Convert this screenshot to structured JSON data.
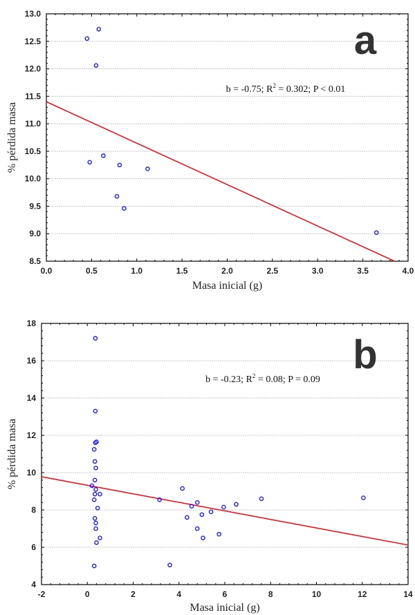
{
  "chart_data": [
    {
      "type": "scatter",
      "panel_label": "a",
      "xlabel": "Masa inicial (g)",
      "ylabel": "% pérdida masa",
      "xlim": [
        0.0,
        4.0
      ],
      "ylim": [
        8.5,
        13.0
      ],
      "xticks": [
        "0.0",
        "0.5",
        "1.0",
        "1.5",
        "2.0",
        "2.5",
        "3.0",
        "3.5",
        "4.0"
      ],
      "yticks": [
        "8.5",
        "9.0",
        "9.5",
        "10.0",
        "10.5",
        "11.0",
        "11.5",
        "12.0",
        "12.5",
        "13.0"
      ],
      "grid": true,
      "annotation": {
        "b": "b = -0.75;",
        "r2_prefix": "R",
        "r2_sup": "2",
        "r2_value": " = 0.302; P < 0.01"
      },
      "points": [
        [
          0.45,
          12.55
        ],
        [
          0.58,
          12.72
        ],
        [
          0.55,
          12.06
        ],
        [
          0.48,
          10.3
        ],
        [
          0.63,
          10.42
        ],
        [
          0.81,
          10.25
        ],
        [
          1.12,
          10.18
        ],
        [
          0.78,
          9.68
        ],
        [
          0.86,
          9.46
        ],
        [
          3.65,
          9.02
        ]
      ],
      "fit_line": {
        "x": [
          0.0,
          3.85
        ],
        "y": [
          11.4,
          8.5
        ]
      },
      "colors": {
        "points": "#1a1aff",
        "line": "#e8161b"
      }
    },
    {
      "type": "scatter",
      "panel_label": "b",
      "xlabel": "Masa inicial (g)",
      "ylabel": "% pérdida masa",
      "xlim": [
        -2,
        14
      ],
      "ylim": [
        4,
        18
      ],
      "xticks": [
        "-2",
        "0",
        "2",
        "4",
        "6",
        "8",
        "10",
        "12",
        "14"
      ],
      "yticks": [
        "4",
        "6",
        "8",
        "10",
        "12",
        "14",
        "16",
        "18"
      ],
      "grid": true,
      "annotation": {
        "b": "b = -0.23;",
        "r2_prefix": "R",
        "r2_sup": "2",
        "r2_value": " = 0.08;  P = 0.09"
      },
      "points": [
        [
          0.35,
          17.2
        ],
        [
          0.35,
          13.3
        ],
        [
          0.4,
          11.65
        ],
        [
          0.35,
          11.6
        ],
        [
          0.3,
          11.25
        ],
        [
          0.33,
          10.6
        ],
        [
          0.37,
          10.25
        ],
        [
          0.33,
          9.6
        ],
        [
          0.2,
          9.3
        ],
        [
          0.37,
          9.1
        ],
        [
          0.33,
          8.85
        ],
        [
          0.55,
          8.85
        ],
        [
          0.3,
          8.55
        ],
        [
          0.45,
          8.1
        ],
        [
          0.33,
          7.55
        ],
        [
          0.37,
          7.3
        ],
        [
          0.37,
          7.0
        ],
        [
          0.55,
          6.5
        ],
        [
          0.4,
          6.25
        ],
        [
          0.3,
          5.0
        ],
        [
          3.15,
          8.55
        ],
        [
          3.6,
          5.05
        ],
        [
          4.15,
          9.15
        ],
        [
          4.35,
          7.6
        ],
        [
          4.55,
          8.2
        ],
        [
          4.8,
          8.4
        ],
        [
          4.8,
          7.0
        ],
        [
          5.0,
          7.75
        ],
        [
          5.05,
          6.5
        ],
        [
          5.4,
          7.9
        ],
        [
          5.75,
          6.7
        ],
        [
          5.95,
          8.15
        ],
        [
          6.5,
          8.3
        ],
        [
          7.6,
          8.6
        ],
        [
          12.05,
          8.65
        ]
      ],
      "fit_line": {
        "x": [
          -2,
          14
        ],
        "y": [
          9.78,
          6.12
        ]
      },
      "colors": {
        "points": "#1a1aff",
        "line": "#e8161b"
      }
    }
  ]
}
